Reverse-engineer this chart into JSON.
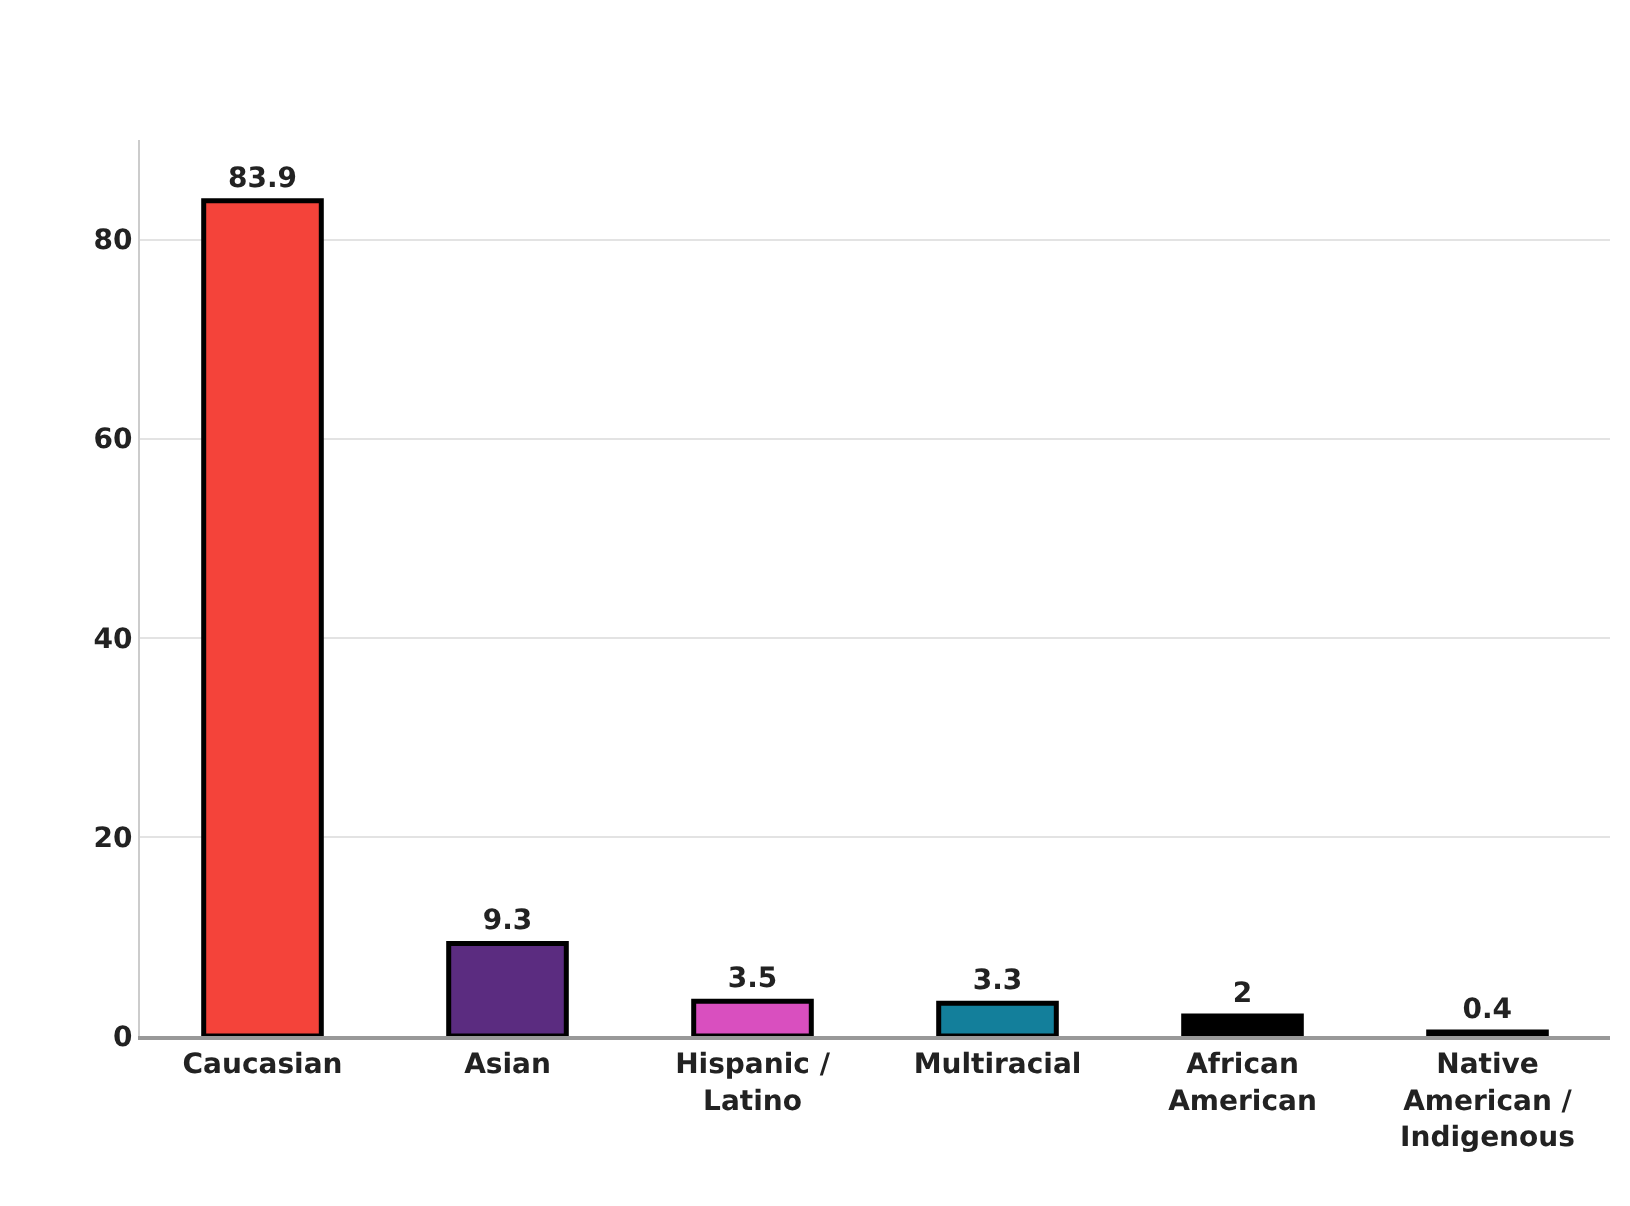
{
  "chart_data": {
    "type": "bar",
    "categories": [
      "Caucasian",
      "Asian",
      "Hispanic /\nLatino",
      "Multiracial",
      "African\nAmerican",
      "Native\nAmerican /\nIndigenous"
    ],
    "values": [
      83.9,
      9.3,
      3.5,
      3.3,
      2,
      0.4
    ],
    "colors": [
      "#f4433a",
      "#5b2c80",
      "#d94fbf",
      "#137f9b",
      "#000000",
      "#1a1a1a"
    ],
    "ylim": [
      0,
      90
    ],
    "yticks": [
      0,
      20,
      40,
      60,
      80
    ],
    "grid": "y",
    "data_labels": true
  }
}
